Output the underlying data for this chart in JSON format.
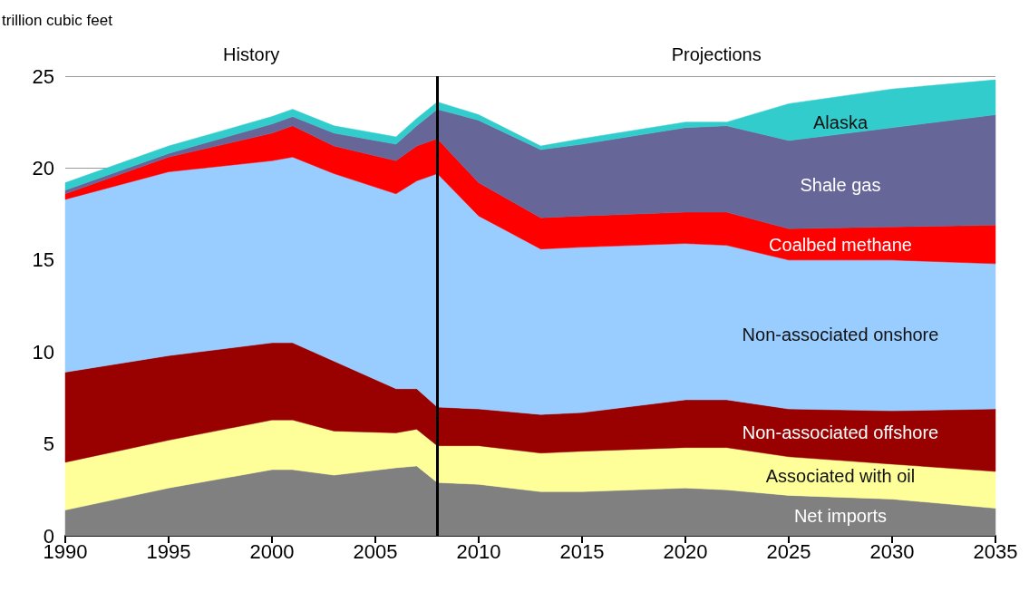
{
  "chart_data": {
    "type": "area",
    "stacked": true,
    "ylabel": "trillion cubic feet",
    "x": [
      1990,
      1995,
      2000,
      2001,
      2003,
      2006,
      2007,
      2008,
      2010,
      2013,
      2015,
      2020,
      2022,
      2025,
      2030,
      2035
    ],
    "series": [
      {
        "name": "Net imports",
        "color": "#808080",
        "values": [
          1.4,
          2.6,
          3.6,
          3.6,
          3.3,
          3.7,
          3.8,
          2.9,
          2.8,
          2.4,
          2.4,
          2.6,
          2.5,
          2.2,
          2.0,
          1.5
        ]
      },
      {
        "name": "Associated with oil",
        "color": "#ffff99",
        "values": [
          2.6,
          2.6,
          2.7,
          2.7,
          2.4,
          1.9,
          2.0,
          2.0,
          2.1,
          2.1,
          2.2,
          2.2,
          2.3,
          2.1,
          1.9,
          2.0
        ]
      },
      {
        "name": "Non-associated offshore",
        "color": "#990000",
        "values": [
          4.9,
          4.6,
          4.2,
          4.2,
          3.8,
          2.4,
          2.2,
          2.1,
          2.0,
          2.1,
          2.1,
          2.6,
          2.6,
          2.6,
          2.9,
          3.4
        ]
      },
      {
        "name": "Non-associated onshore",
        "color": "#99ccff",
        "values": [
          9.4,
          10.0,
          9.9,
          10.1,
          10.2,
          10.6,
          11.3,
          12.7,
          10.5,
          9.0,
          9.0,
          8.5,
          8.4,
          8.1,
          8.2,
          7.9
        ]
      },
      {
        "name": "Coalbed methane",
        "color": "#ff0000",
        "values": [
          0.3,
          0.8,
          1.5,
          1.7,
          1.5,
          1.8,
          1.9,
          1.9,
          1.8,
          1.7,
          1.7,
          1.7,
          1.8,
          1.7,
          1.8,
          2.1
        ]
      },
      {
        "name": "Shale gas",
        "color": "#666699",
        "values": [
          0.2,
          0.2,
          0.5,
          0.5,
          0.7,
          0.9,
          1.1,
          1.6,
          3.4,
          3.7,
          3.9,
          4.6,
          4.7,
          4.8,
          5.4,
          6.0
        ]
      },
      {
        "name": "Alaska",
        "color": "#33cccc",
        "values": [
          0.4,
          0.4,
          0.4,
          0.4,
          0.4,
          0.4,
          0.4,
          0.4,
          0.3,
          0.2,
          0.3,
          0.3,
          0.2,
          2.0,
          2.1,
          1.9
        ]
      }
    ],
    "xlim": [
      1990,
      2035
    ],
    "xticks": [
      1990,
      1995,
      2000,
      2005,
      2010,
      2015,
      2020,
      2025,
      2030,
      2035
    ],
    "ylim": [
      0,
      25
    ],
    "yticks": [
      0,
      5,
      10,
      15,
      20,
      25
    ],
    "grid": "y",
    "legend": false,
    "ref_lines": [
      {
        "axis": "x",
        "value": 2008,
        "color": "#000000"
      }
    ],
    "annotations": [
      "History",
      "Projections"
    ]
  }
}
